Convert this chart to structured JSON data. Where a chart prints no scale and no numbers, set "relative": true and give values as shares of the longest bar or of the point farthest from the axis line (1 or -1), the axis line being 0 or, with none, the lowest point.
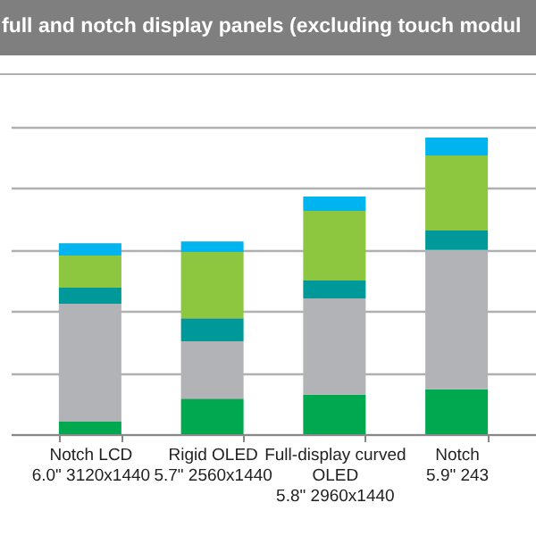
{
  "chart_data": {
    "type": "bar",
    "title": "full and notch display panels (excluding touch modul",
    "stacked": true,
    "relative": true,
    "grid": "y",
    "categories": [
      "Notch LCD\n6.0\" 3120x1440",
      "Rigid OLED\n5.7\" 2560x1440",
      "Full-display curved\nOLED\n5.8\" 2960x1440",
      "Notch\n5.9\" 243"
    ],
    "series": [
      {
        "color": "#00a94f",
        "values": [
          0.042,
          0.12,
          0.133,
          0.151
        ]
      },
      {
        "color": "#b1b3b6",
        "values": [
          0.398,
          0.193,
          0.325,
          0.47
        ]
      },
      {
        "color": "#009999",
        "values": [
          0.054,
          0.078,
          0.06,
          0.066
        ]
      },
      {
        "color": "#8dc63f",
        "values": [
          0.108,
          0.223,
          0.235,
          0.253
        ]
      },
      {
        "color": "#00b5ef",
        "values": [
          0.042,
          0.036,
          0.048,
          0.06
        ]
      }
    ]
  }
}
